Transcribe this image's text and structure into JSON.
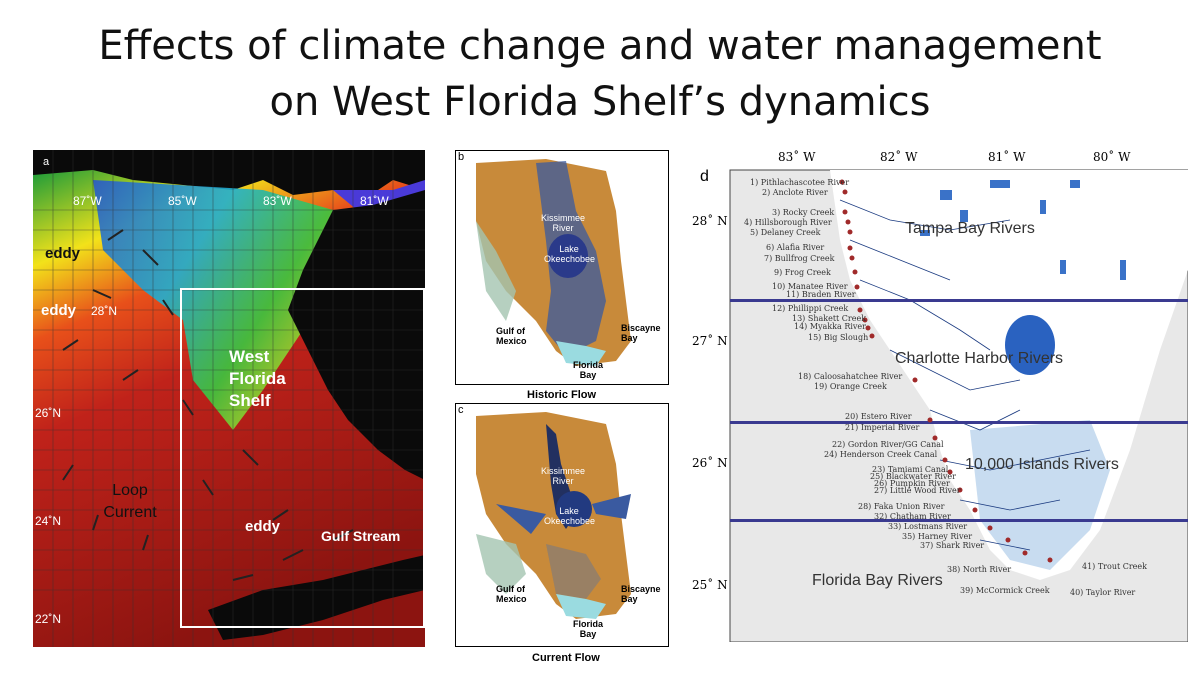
{
  "title": {
    "line1": "Effects of climate change and water management",
    "line2": "on West Florida Shelf’s dynamics"
  },
  "panel_a": {
    "letter": "a",
    "lon_labels": [
      "87˚W",
      "85˚W",
      "83˚W",
      "81˚W"
    ],
    "lat_labels": [
      "28˚N",
      "26˚N",
      "24˚N",
      "22˚N"
    ],
    "features": {
      "eddy_1": "eddy",
      "eddy_2": "eddy",
      "eddy_3": "eddy",
      "west_florida_shelf": "West Florida Shelf",
      "loop_current": "Loop Current",
      "gulf_stream": "Gulf Stream"
    }
  },
  "panel_b": {
    "letter": "b",
    "caption": "Historic Flow",
    "labels": {
      "kissimmee": "Kissimmee River",
      "okeechobee": "Lake Okeechobee",
      "gulf": "Gulf of Mexico",
      "biscayne": "Biscayne Bay",
      "florida_bay": "Florida Bay"
    }
  },
  "panel_c": {
    "letter": "c",
    "caption": "Current Flow",
    "labels": {
      "kissimmee": "Kissimmee River",
      "okeechobee": "Lake Okeechobee",
      "gulf": "Gulf of Mexico",
      "biscayne": "Biscayne Bay",
      "florida_bay": "Florida Bay"
    }
  },
  "panel_d": {
    "letter": "d",
    "lon_labels": [
      "83˚ W",
      "82˚ W",
      "81˚ W",
      "80˚ W"
    ],
    "lat_labels": [
      "28˚ N",
      "27˚ N",
      "26˚ N",
      "25˚ N"
    ],
    "regions": {
      "tampa": "Tampa Bay Rivers",
      "charlotte": "Charlotte Harbor Rivers",
      "ten_thousand": "10,000 Islands Rivers",
      "florida_bay": "Florida Bay Rivers"
    },
    "rivers": [
      "1) Pithlachascotee River",
      "2) Anclote River",
      "3) Rocky Creek",
      "4) Hillsborough River",
      "5) Delaney Creek",
      "6) Alafia River",
      "7) Bullfrog Creek",
      "9) Frog Creek",
      "10) Manatee River",
      "11) Braden River",
      "12) Phillippi Creek",
      "13) Shakett Creek",
      "14) Myakka River",
      "15) Big Slough",
      "18) Caloosahatchee River",
      "19) Orange Creek",
      "20) Estero River",
      "21) Imperial River",
      "22) Gordon River/GG Canal",
      "24) Henderson Creek Canal",
      "23) Tamiami Canal",
      "25) Blackwater River",
      "26) Pumpkin River",
      "27) Little Wood River",
      "28) Faka Union River",
      "32) Chatham River",
      "33) Lostmans River",
      "35) Harney River",
      "37) Shark River",
      "38) North River",
      "39) McCormick Creek",
      "40) Taylor River",
      "41) Trout Creek"
    ]
  }
}
